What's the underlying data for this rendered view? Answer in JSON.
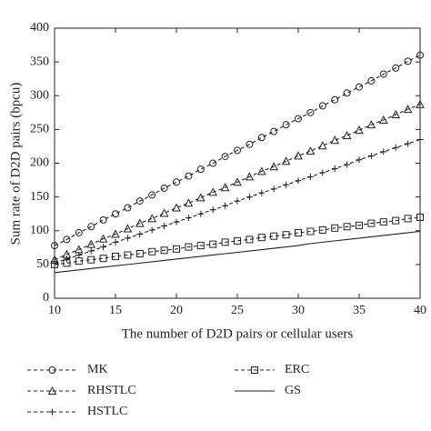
{
  "chart_data": {
    "type": "line",
    "x_label": "The number of D2D pairs or cellular users",
    "y_label": "Sum rate of D2D pairs (bpcu)",
    "x": [
      10,
      11,
      12,
      13,
      14,
      15,
      16,
      17,
      18,
      19,
      20,
      21,
      22,
      23,
      24,
      25,
      26,
      27,
      28,
      29,
      30,
      31,
      32,
      33,
      34,
      35,
      36,
      37,
      38,
      39,
      40
    ],
    "xlim": [
      10,
      40
    ],
    "xticks": [
      10,
      15,
      20,
      25,
      30,
      35,
      40
    ],
    "ylim": [
      0,
      400
    ],
    "yticks": [
      0,
      50,
      100,
      150,
      200,
      250,
      300,
      350,
      400
    ],
    "color": "#222222",
    "series": [
      {
        "name": "MK",
        "marker": "circle",
        "dashed": true,
        "values": [
          78,
          87,
          97,
          106,
          116,
          125,
          134,
          144,
          153,
          163,
          172,
          181,
          191,
          200,
          210,
          219,
          228,
          238,
          247,
          257,
          266,
          275,
          285,
          294,
          304,
          313,
          322,
          332,
          341,
          351,
          360
        ]
      },
      {
        "name": "RHSTLC",
        "marker": "triangle",
        "dashed": true,
        "values": [
          57,
          65,
          72,
          80,
          88,
          95,
          103,
          111,
          118,
          126,
          134,
          141,
          149,
          157,
          164,
          172,
          180,
          188,
          195,
          203,
          211,
          218,
          226,
          234,
          241,
          249,
          257,
          264,
          272,
          280,
          287
        ]
      },
      {
        "name": "HSTLC",
        "marker": "plus",
        "dashed": true,
        "values": [
          52,
          58,
          64,
          70,
          76,
          83,
          89,
          95,
          101,
          107,
          113,
          119,
          125,
          131,
          137,
          144,
          150,
          156,
          162,
          168,
          174,
          180,
          186,
          192,
          198,
          205,
          211,
          217,
          223,
          229,
          235
        ]
      },
      {
        "name": "ERC",
        "marker": "square",
        "dashed": true,
        "values": [
          50,
          52,
          55,
          57,
          59,
          62,
          64,
          66,
          69,
          71,
          73,
          76,
          78,
          80,
          83,
          85,
          87,
          90,
          92,
          94,
          97,
          99,
          101,
          104,
          106,
          108,
          111,
          113,
          115,
          118,
          120
        ]
      },
      {
        "name": "GS",
        "marker": "none",
        "dashed": false,
        "values": [
          38,
          40,
          42,
          44,
          46,
          48,
          50,
          52,
          54,
          56,
          58,
          60,
          62,
          64,
          66,
          68,
          70,
          72,
          74,
          76,
          78,
          81,
          83,
          85,
          87,
          89,
          91,
          93,
          95,
          97,
          99
        ]
      }
    ]
  }
}
